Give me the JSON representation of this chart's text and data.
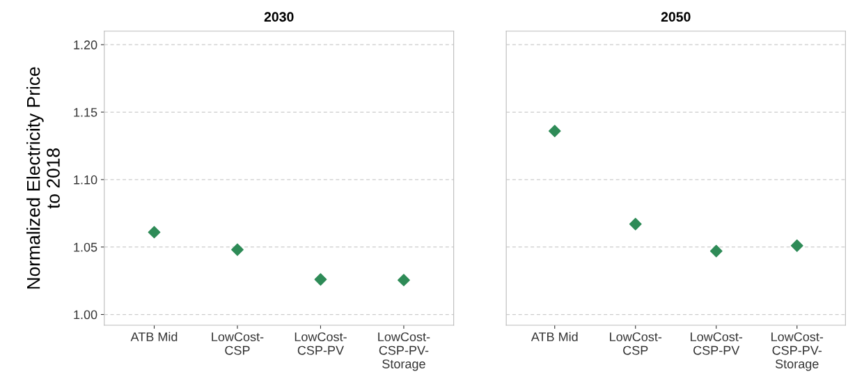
{
  "chart_data": [
    {
      "type": "scatter",
      "title": "2030",
      "ylabel": "Normalized Electricity Price\nto 2018",
      "categories": [
        "ATB Mid",
        "LowCost-\nCSP",
        "LowCost-\nCSP-PV",
        "LowCost-\nCSP-PV-\nStorage"
      ],
      "series": [
        {
          "color": "#2e8b57",
          "values": [
            1.061,
            1.048,
            1.026,
            1.0255
          ]
        }
      ],
      "ylim": [
        0.992,
        1.21
      ],
      "yticks": [
        {
          "value": 1.0,
          "label": "1.00"
        },
        {
          "value": 1.05,
          "label": "1.05"
        },
        {
          "value": 1.1,
          "label": "1.10"
        },
        {
          "value": 1.15,
          "label": "1.15"
        },
        {
          "value": 1.2,
          "label": "1.20"
        }
      ],
      "grid": "y",
      "marker": "diamond"
    },
    {
      "type": "scatter",
      "title": "2050",
      "categories": [
        "ATB Mid",
        "LowCost-\nCSP",
        "LowCost-\nCSP-PV",
        "LowCost-\nCSP-PV-\nStorage"
      ],
      "series": [
        {
          "color": "#2e8b57",
          "values": [
            1.136,
            1.067,
            1.047,
            1.051
          ]
        }
      ],
      "ylim": [
        0.992,
        1.21
      ],
      "yticks": [
        {
          "value": 1.0,
          "label": null
        },
        {
          "value": 1.05,
          "label": null
        },
        {
          "value": 1.1,
          "label": null
        },
        {
          "value": 1.15,
          "label": null
        },
        {
          "value": 1.2,
          "label": null
        }
      ],
      "grid": "y",
      "marker": "diamond",
      "tick_labels": "x"
    }
  ]
}
